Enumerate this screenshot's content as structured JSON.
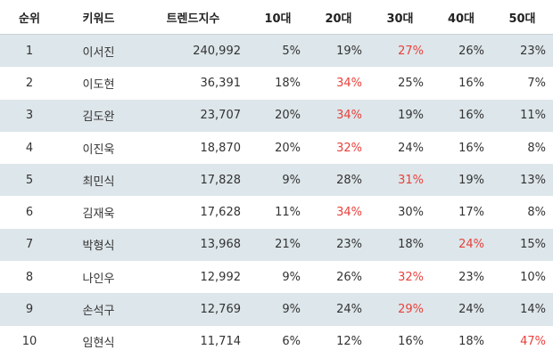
{
  "table": {
    "header": [
      "순위",
      "키워드",
      "트렌드지수",
      "10대",
      "20대",
      "30대",
      "40대",
      "50대"
    ],
    "highlight_color": "#e8413c",
    "stripe_color": "#dde6ea",
    "rows": [
      {
        "cells": [
          "1",
          "이서진",
          "240,992",
          "5%",
          "19%",
          "27%",
          "26%",
          "23%"
        ],
        "highlight": 5
      },
      {
        "cells": [
          "2",
          "이도현",
          "36,391",
          "18%",
          "34%",
          "25%",
          "16%",
          "7%"
        ],
        "highlight": 4
      },
      {
        "cells": [
          "3",
          "김도완",
          "23,707",
          "20%",
          "34%",
          "19%",
          "16%",
          "11%"
        ],
        "highlight": 4
      },
      {
        "cells": [
          "4",
          "이진욱",
          "18,870",
          "20%",
          "32%",
          "24%",
          "16%",
          "8%"
        ],
        "highlight": 4
      },
      {
        "cells": [
          "5",
          "최민식",
          "17,828",
          "9%",
          "28%",
          "31%",
          "19%",
          "13%"
        ],
        "highlight": 5
      },
      {
        "cells": [
          "6",
          "김재욱",
          "17,628",
          "11%",
          "34%",
          "30%",
          "17%",
          "8%"
        ],
        "highlight": 4
      },
      {
        "cells": [
          "7",
          "박형식",
          "13,968",
          "21%",
          "23%",
          "18%",
          "24%",
          "15%"
        ],
        "highlight": 6
      },
      {
        "cells": [
          "8",
          "나인우",
          "12,992",
          "9%",
          "26%",
          "32%",
          "23%",
          "10%"
        ],
        "highlight": 5
      },
      {
        "cells": [
          "9",
          "손석구",
          "12,769",
          "9%",
          "24%",
          "29%",
          "24%",
          "14%"
        ],
        "highlight": 5
      },
      {
        "cells": [
          "10",
          "임현식",
          "11,714",
          "6%",
          "12%",
          "16%",
          "18%",
          "47%"
        ],
        "highlight": 7
      }
    ]
  }
}
